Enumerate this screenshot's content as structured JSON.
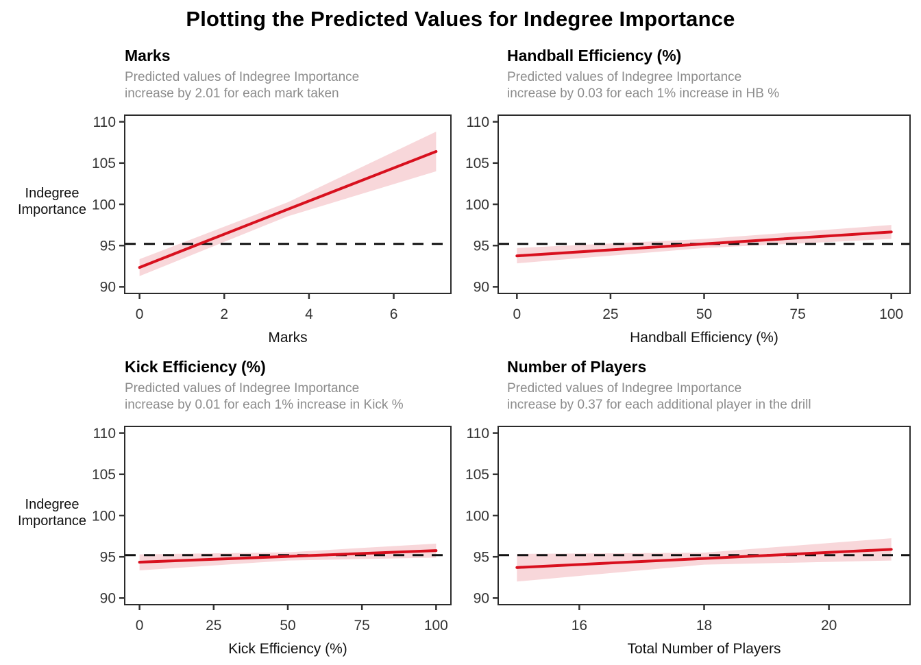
{
  "page": {
    "title": "Plotting the Predicted Values for Indegree Importance"
  },
  "colors": {
    "line": "#D8101E",
    "ribbon": "#F8D7DA",
    "reference": "#111111",
    "panel_border": "#2B2B2B",
    "tick": "#333333",
    "subtitle": "#8C8C8C"
  },
  "y_axis": {
    "label_line1": "Indegree",
    "label_line2": "Importance",
    "ticks": [
      90,
      95,
      100,
      105,
      110
    ],
    "range": [
      89.2,
      110.8
    ]
  },
  "reference_value": 95.2,
  "chart_data": [
    {
      "type": "line",
      "title": "Marks",
      "subtitle_line1": "Predicted values of Indegree Importance",
      "subtitle_line2": "increase by 2.01 for each mark taken",
      "xlabel": "Marks",
      "ylabel": "Indegree Importance",
      "slope": 2.01,
      "x_ticks": [
        0,
        2,
        4,
        6
      ],
      "xlim": [
        -0.35,
        7.35
      ],
      "ylim": [
        89.2,
        110.8
      ],
      "y_ticks": [
        90,
        95,
        100,
        105,
        110
      ],
      "reference_y": 95.2,
      "grid": false,
      "legend": "none",
      "series": [
        {
          "name": "predicted",
          "x": [
            0,
            3.5,
            7
          ],
          "y": [
            92.35,
            99.4,
            106.4
          ]
        }
      ],
      "ribbon": {
        "x": [
          0,
          3.5,
          7
        ],
        "upper": [
          93.35,
          100.25,
          108.8
        ],
        "lower": [
          91.3,
          98.55,
          104.0
        ]
      }
    },
    {
      "type": "line",
      "title": "Handball Efficiency (%)",
      "subtitle_line1": "Predicted values of Indegree Importance",
      "subtitle_line2": "increase by 0.03 for each 1% increase in HB %",
      "xlabel": "Handball Efficiency (%)",
      "ylabel": "Indegree Importance",
      "slope": 0.03,
      "x_ticks": [
        0,
        25,
        50,
        75,
        100
      ],
      "xlim": [
        -5,
        105
      ],
      "ylim": [
        89.2,
        110.8
      ],
      "y_ticks": [
        90,
        95,
        100,
        105,
        110
      ],
      "reference_y": 95.2,
      "grid": false,
      "legend": "none",
      "series": [
        {
          "name": "predicted",
          "x": [
            0,
            50,
            100
          ],
          "y": [
            93.75,
            95.2,
            96.65
          ]
        }
      ],
      "ribbon": {
        "x": [
          0,
          50,
          100
        ],
        "upper": [
          94.7,
          95.8,
          97.5
        ],
        "lower": [
          92.85,
          94.7,
          95.8
        ]
      }
    },
    {
      "type": "line",
      "title": "Kick Efficiency (%)",
      "subtitle_line1": "Predicted values of Indegree Importance",
      "subtitle_line2": "increase by 0.01 for each 1% increase in Kick %",
      "xlabel": "Kick Efficiency (%)",
      "ylabel": "Indegree Importance",
      "slope": 0.01,
      "x_ticks": [
        0,
        25,
        50,
        75,
        100
      ],
      "xlim": [
        -5,
        105
      ],
      "ylim": [
        89.2,
        110.8
      ],
      "y_ticks": [
        90,
        95,
        100,
        105,
        110
      ],
      "reference_y": 95.2,
      "grid": false,
      "legend": "none",
      "series": [
        {
          "name": "predicted",
          "x": [
            0,
            50,
            100
          ],
          "y": [
            94.35,
            95.05,
            95.75
          ]
        }
      ],
      "ribbon": {
        "x": [
          0,
          50,
          100
        ],
        "upper": [
          95.3,
          95.55,
          96.6
        ],
        "lower": [
          93.35,
          94.55,
          94.9
        ]
      }
    },
    {
      "type": "line",
      "title": "Number of Players",
      "subtitle_line1": "Predicted values of Indegree Importance",
      "subtitle_line2": "increase by 0.37 for each additional player in the drill",
      "xlabel": "Total Number of Players",
      "ylabel": "Indegree Importance",
      "slope": 0.37,
      "x_ticks": [
        16,
        18,
        20
      ],
      "xlim": [
        14.7,
        21.3
      ],
      "ylim": [
        89.2,
        110.8
      ],
      "y_ticks": [
        90,
        95,
        100,
        105,
        110
      ],
      "reference_y": 95.2,
      "grid": false,
      "legend": "none",
      "series": [
        {
          "name": "predicted",
          "x": [
            15,
            18,
            21
          ],
          "y": [
            93.7,
            94.8,
            95.9
          ]
        }
      ],
      "ribbon": {
        "x": [
          15,
          18,
          21
        ],
        "upper": [
          95.35,
          95.5,
          97.25
        ],
        "lower": [
          92.0,
          94.05,
          94.55
        ]
      }
    }
  ]
}
